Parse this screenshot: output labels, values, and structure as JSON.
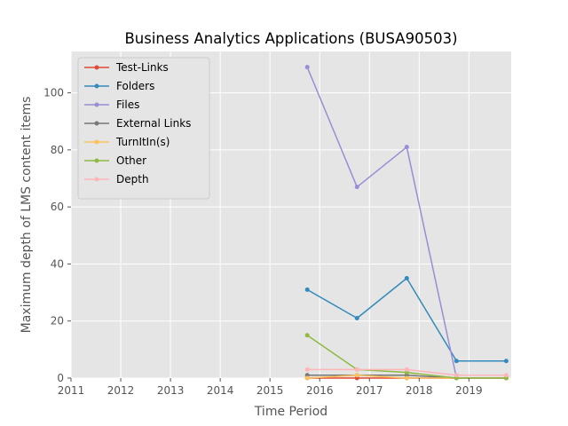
{
  "chart_data": {
    "type": "line",
    "title": "Business Analytics Applications (BUSA90503)",
    "xlabel": "Time Period",
    "ylabel": "Maximum depth of LMS content items",
    "xlim": [
      2011,
      2019.85
    ],
    "ylim": [
      0,
      114.5
    ],
    "xticks": [
      2011,
      2012,
      2013,
      2014,
      2015,
      2016,
      2017,
      2018,
      2019
    ],
    "yticks": [
      0,
      20,
      40,
      60,
      80,
      100
    ],
    "grid": true,
    "legend_position": "upper-left",
    "x": [
      2015.75,
      2016.75,
      2017.75,
      2018.75,
      2019.75
    ],
    "series": [
      {
        "name": "Test-Links",
        "color": "#e24a33",
        "values": [
          0,
          0,
          0,
          0,
          0
        ]
      },
      {
        "name": "Folders",
        "color": "#348abd",
        "values": [
          31,
          21,
          35,
          6,
          6
        ]
      },
      {
        "name": "Files",
        "color": "#988ed5",
        "values": [
          109,
          67,
          81,
          0,
          0
        ]
      },
      {
        "name": "External Links",
        "color": "#777777",
        "values": [
          1,
          1,
          1,
          0,
          0
        ]
      },
      {
        "name": "TurnItIn(s)",
        "color": "#fbc15e",
        "values": [
          0,
          1,
          0,
          0,
          0
        ]
      },
      {
        "name": "Other",
        "color": "#8eba42",
        "values": [
          15,
          3,
          2,
          0,
          0
        ]
      },
      {
        "name": "Depth",
        "color": "#ffb5b8",
        "values": [
          3,
          3,
          3,
          1,
          1
        ]
      }
    ]
  }
}
